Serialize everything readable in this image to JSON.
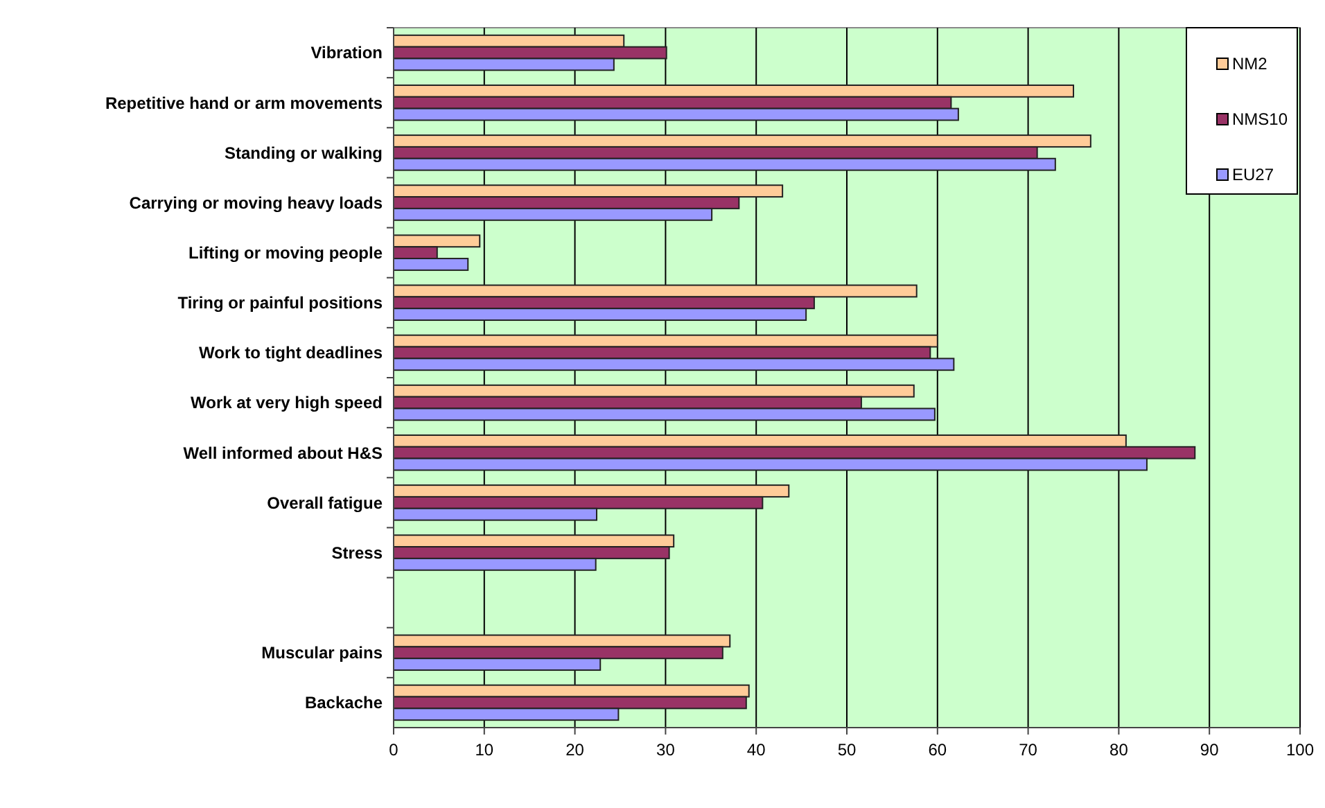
{
  "chart_data": {
    "type": "bar",
    "orientation": "horizontal",
    "categories": [
      "Vibration",
      "Repetitive hand or arm movements",
      "Standing or walking ",
      "Carrying or moving heavy loads",
      "Lifting or moving people",
      "Tiring or painful positions",
      "Work to tight deadlines",
      "Work at very high speed ",
      "Well informed about H&S",
      "Overall fatigue",
      "Stress",
      null,
      "Muscular pains",
      "Backache"
    ],
    "series": [
      {
        "name": "NM2",
        "color": "#ffcc99",
        "values": [
          25.4,
          75.0,
          76.9,
          42.9,
          9.5,
          57.7,
          60.0,
          57.4,
          80.8,
          43.6,
          30.9,
          null,
          37.1,
          39.2
        ]
      },
      {
        "name": "NMS10",
        "color": "#993366",
        "values": [
          30.1,
          61.5,
          71.0,
          38.1,
          4.8,
          46.4,
          59.2,
          51.6,
          88.4,
          40.7,
          30.4,
          null,
          36.3,
          38.9
        ]
      },
      {
        "name": "EU27",
        "color": "#9999ff",
        "values": [
          24.3,
          62.3,
          73.0,
          35.1,
          8.2,
          45.5,
          61.8,
          59.7,
          83.1,
          22.4,
          22.3,
          null,
          22.8,
          24.8
        ]
      }
    ],
    "xlim": [
      0,
      100
    ],
    "xticks": [
      0,
      10,
      20,
      30,
      40,
      50,
      60,
      70,
      80,
      90,
      100
    ],
    "grid": "x",
    "legend": "top right"
  }
}
